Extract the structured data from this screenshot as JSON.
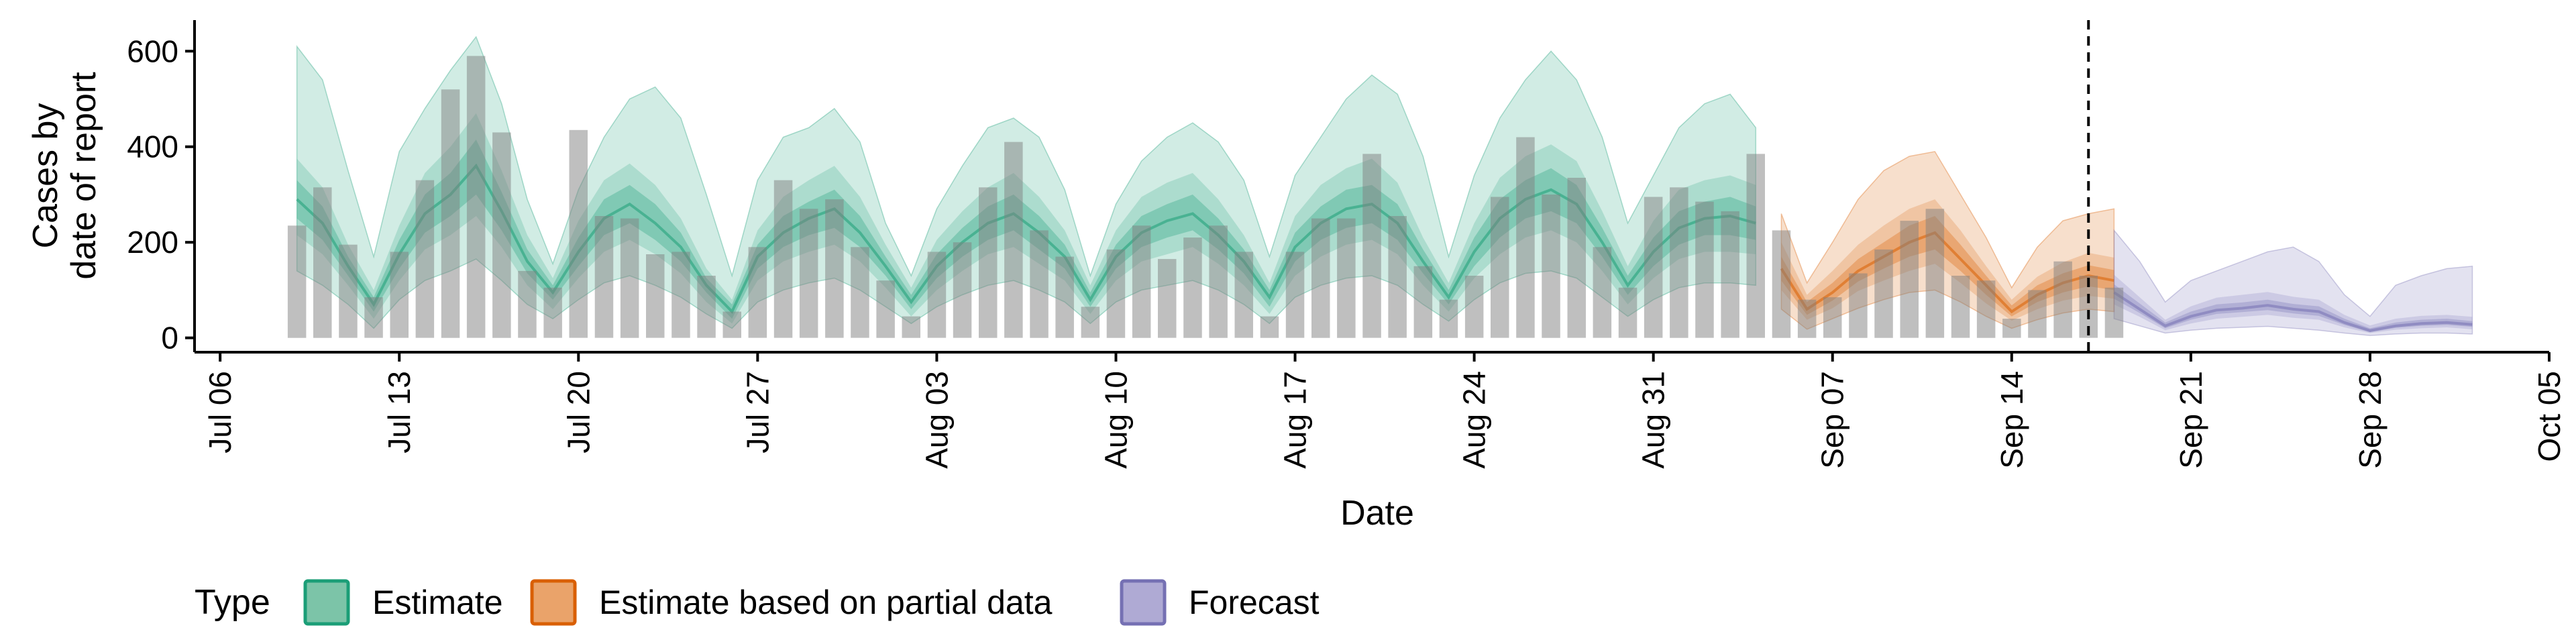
{
  "chart_data": {
    "type": "bar",
    "xlabel": "Date",
    "ylabel_lines": [
      "Cases by",
      "date of report"
    ],
    "ylim": [
      -30,
      665
    ],
    "y_ticks": [
      0,
      200,
      400,
      600
    ],
    "x_ticks": [
      {
        "date": "2020-07-06",
        "label": "Jul 06"
      },
      {
        "date": "2020-07-13",
        "label": "Jul 13"
      },
      {
        "date": "2020-07-20",
        "label": "Jul 20"
      },
      {
        "date": "2020-07-27",
        "label": "Jul 27"
      },
      {
        "date": "2020-08-03",
        "label": "Aug 03"
      },
      {
        "date": "2020-08-10",
        "label": "Aug 10"
      },
      {
        "date": "2020-08-17",
        "label": "Aug 17"
      },
      {
        "date": "2020-08-24",
        "label": "Aug 24"
      },
      {
        "date": "2020-08-31",
        "label": "Aug 31"
      },
      {
        "date": "2020-09-07",
        "label": "Sep 07"
      },
      {
        "date": "2020-09-14",
        "label": "Sep 14"
      },
      {
        "date": "2020-09-21",
        "label": "Sep 21"
      },
      {
        "date": "2020-09-28",
        "label": "Sep 28"
      },
      {
        "date": "2020-10-05",
        "label": "Oct 05"
      }
    ],
    "xlim": [
      "2020-07-05",
      "2020-10-05"
    ],
    "forecast_start_line": "2020-09-17",
    "reported_cases": {
      "start_date": "2020-07-09",
      "values": [
        235,
        315,
        195,
        85,
        180,
        330,
        520,
        590,
        430,
        140,
        105,
        435,
        255,
        250,
        175,
        180,
        130,
        55,
        190,
        330,
        270,
        290,
        190,
        120,
        45,
        180,
        200,
        315,
        410,
        225,
        170,
        65,
        185,
        235,
        165,
        210,
        235,
        180,
        45,
        180,
        250,
        250,
        385,
        255,
        150,
        80,
        130,
        295,
        420,
        300,
        335,
        190,
        105,
        295,
        315,
        285,
        265,
        385,
        225,
        80,
        85,
        135,
        185,
        245,
        270,
        130,
        120,
        40,
        100,
        160,
        130,
        105
      ]
    },
    "series": [
      {
        "name": "Estimate",
        "color": "#1b9e77",
        "start_date": "2020-07-09",
        "median": [
          290,
          240,
          150,
          70,
          175,
          260,
          300,
          360,
          265,
          160,
          95,
          180,
          250,
          280,
          240,
          190,
          110,
          55,
          170,
          220,
          250,
          270,
          220,
          150,
          75,
          150,
          200,
          240,
          260,
          220,
          170,
          80,
          170,
          220,
          245,
          260,
          215,
          160,
          85,
          190,
          240,
          270,
          280,
          240,
          160,
          85,
          180,
          250,
          290,
          310,
          280,
          200,
          110,
          180,
          230,
          250,
          255,
          240
        ],
        "p25": [
          250,
          205,
          130,
          55,
          145,
          220,
          255,
          300,
          225,
          135,
          80,
          150,
          215,
          240,
          205,
          160,
          95,
          40,
          145,
          190,
          215,
          230,
          190,
          130,
          60,
          125,
          170,
          205,
          225,
          185,
          145,
          65,
          145,
          190,
          210,
          225,
          185,
          135,
          65,
          160,
          205,
          230,
          240,
          205,
          135,
          70,
          150,
          210,
          250,
          265,
          240,
          170,
          90,
          150,
          195,
          215,
          215,
          205
        ],
        "p75": [
          330,
          275,
          170,
          85,
          205,
          300,
          345,
          415,
          305,
          185,
          110,
          210,
          290,
          320,
          280,
          220,
          125,
          70,
          195,
          255,
          285,
          310,
          255,
          170,
          90,
          175,
          230,
          275,
          300,
          255,
          195,
          95,
          195,
          255,
          280,
          300,
          250,
          185,
          100,
          220,
          275,
          310,
          320,
          280,
          185,
          100,
          210,
          290,
          330,
          355,
          320,
          230,
          130,
          210,
          265,
          285,
          295,
          275
        ],
        "p05": [
          215,
          175,
          110,
          40,
          120,
          185,
          215,
          255,
          190,
          110,
          60,
          125,
          180,
          205,
          175,
          135,
          75,
          30,
          120,
          160,
          180,
          195,
          160,
          105,
          45,
          100,
          140,
          175,
          190,
          155,
          120,
          50,
          120,
          160,
          175,
          190,
          155,
          110,
          50,
          130,
          170,
          195,
          205,
          175,
          110,
          55,
          125,
          175,
          210,
          225,
          200,
          140,
          70,
          125,
          165,
          180,
          180,
          175
        ],
        "p95": [
          375,
          315,
          195,
          100,
          235,
          345,
          400,
          470,
          350,
          215,
          125,
          245,
          330,
          365,
          320,
          250,
          145,
          80,
          225,
          295,
          330,
          360,
          295,
          195,
          105,
          205,
          265,
          315,
          345,
          295,
          225,
          110,
          225,
          295,
          325,
          345,
          290,
          215,
          115,
          255,
          320,
          355,
          375,
          325,
          210,
          115,
          240,
          335,
          380,
          405,
          370,
          265,
          150,
          245,
          310,
          330,
          340,
          320
        ],
        "lo90": [
          140,
          110,
          70,
          20,
          80,
          120,
          140,
          165,
          120,
          70,
          40,
          80,
          115,
          130,
          110,
          85,
          50,
          20,
          75,
          100,
          115,
          125,
          100,
          65,
          30,
          65,
          90,
          110,
          120,
          100,
          75,
          30,
          75,
          100,
          110,
          120,
          100,
          70,
          30,
          85,
          110,
          125,
          130,
          110,
          70,
          35,
          80,
          115,
          135,
          140,
          125,
          85,
          45,
          80,
          105,
          115,
          115,
          110
        ],
        "hi90": [
          610,
          540,
          350,
          170,
          390,
          480,
          560,
          630,
          490,
          290,
          155,
          310,
          420,
          500,
          525,
          460,
          300,
          130,
          330,
          420,
          440,
          480,
          410,
          240,
          130,
          270,
          360,
          440,
          460,
          420,
          310,
          130,
          280,
          370,
          420,
          450,
          410,
          330,
          170,
          340,
          420,
          500,
          550,
          510,
          380,
          170,
          340,
          460,
          540,
          600,
          540,
          420,
          240,
          340,
          440,
          490,
          510,
          440
        ]
      },
      {
        "name": "Estimate based on partial data",
        "color": "#d95f02",
        "start_date": "2020-09-05",
        "median": [
          145,
          60,
          95,
          140,
          170,
          200,
          220,
          165,
          110,
          55,
          90,
          115,
          130,
          120
        ],
        "p25": [
          120,
          48,
          78,
          118,
          145,
          170,
          185,
          140,
          90,
          45,
          75,
          95,
          108,
          100
        ],
        "p75": [
          170,
          75,
          115,
          165,
          200,
          235,
          255,
          195,
          130,
          68,
          110,
          135,
          152,
          142
        ],
        "p05": [
          100,
          38,
          62,
          98,
          120,
          140,
          155,
          115,
          72,
          36,
          60,
          78,
          88,
          82
        ],
        "p95": [
          200,
          90,
          140,
          195,
          235,
          270,
          290,
          225,
          150,
          80,
          128,
          158,
          178,
          168
        ],
        "lo90": [
          60,
          18,
          40,
          62,
          80,
          95,
          100,
          75,
          45,
          20,
          38,
          52,
          60,
          55
        ],
        "hi90": [
          260,
          115,
          200,
          290,
          350,
          380,
          390,
          300,
          210,
          105,
          190,
          245,
          260,
          270
        ]
      },
      {
        "name": "Forecast",
        "color": "#7570b3",
        "start_date": "2020-09-18",
        "median": [
          95,
          60,
          25,
          45,
          58,
          62,
          68,
          60,
          55,
          32,
          15,
          25,
          30,
          32,
          28
        ],
        "p25": [
          82,
          52,
          20,
          38,
          50,
          54,
          58,
          51,
          46,
          27,
          12,
          21,
          25,
          27,
          23
        ],
        "p75": [
          112,
          72,
          32,
          55,
          70,
          74,
          80,
          71,
          66,
          40,
          20,
          32,
          38,
          40,
          35
        ],
        "p05": [
          70,
          44,
          16,
          30,
          40,
          44,
          48,
          42,
          38,
          22,
          10,
          17,
          20,
          22,
          18
        ],
        "p95": [
          132,
          85,
          38,
          66,
          84,
          90,
          96,
          86,
          80,
          48,
          26,
          40,
          46,
          48,
          44
        ],
        "lo90": [
          40,
          25,
          10,
          16,
          20,
          22,
          24,
          20,
          16,
          10,
          5,
          8,
          10,
          10,
          8
        ],
        "hi90": [
          225,
          160,
          75,
          120,
          140,
          160,
          180,
          190,
          160,
          90,
          45,
          110,
          130,
          145,
          150
        ]
      }
    ],
    "legend": {
      "title": "Type",
      "entries": [
        {
          "label": "Estimate",
          "fill": "#7cc4a8",
          "stroke": "#1b9e77"
        },
        {
          "label": "Estimate based on partial data",
          "fill": "#eaa36a",
          "stroke": "#d95f02"
        },
        {
          "label": "Forecast",
          "fill": "#afaad4",
          "stroke": "#7570b3"
        }
      ],
      "placement": "bottom-left"
    },
    "grid": false
  }
}
